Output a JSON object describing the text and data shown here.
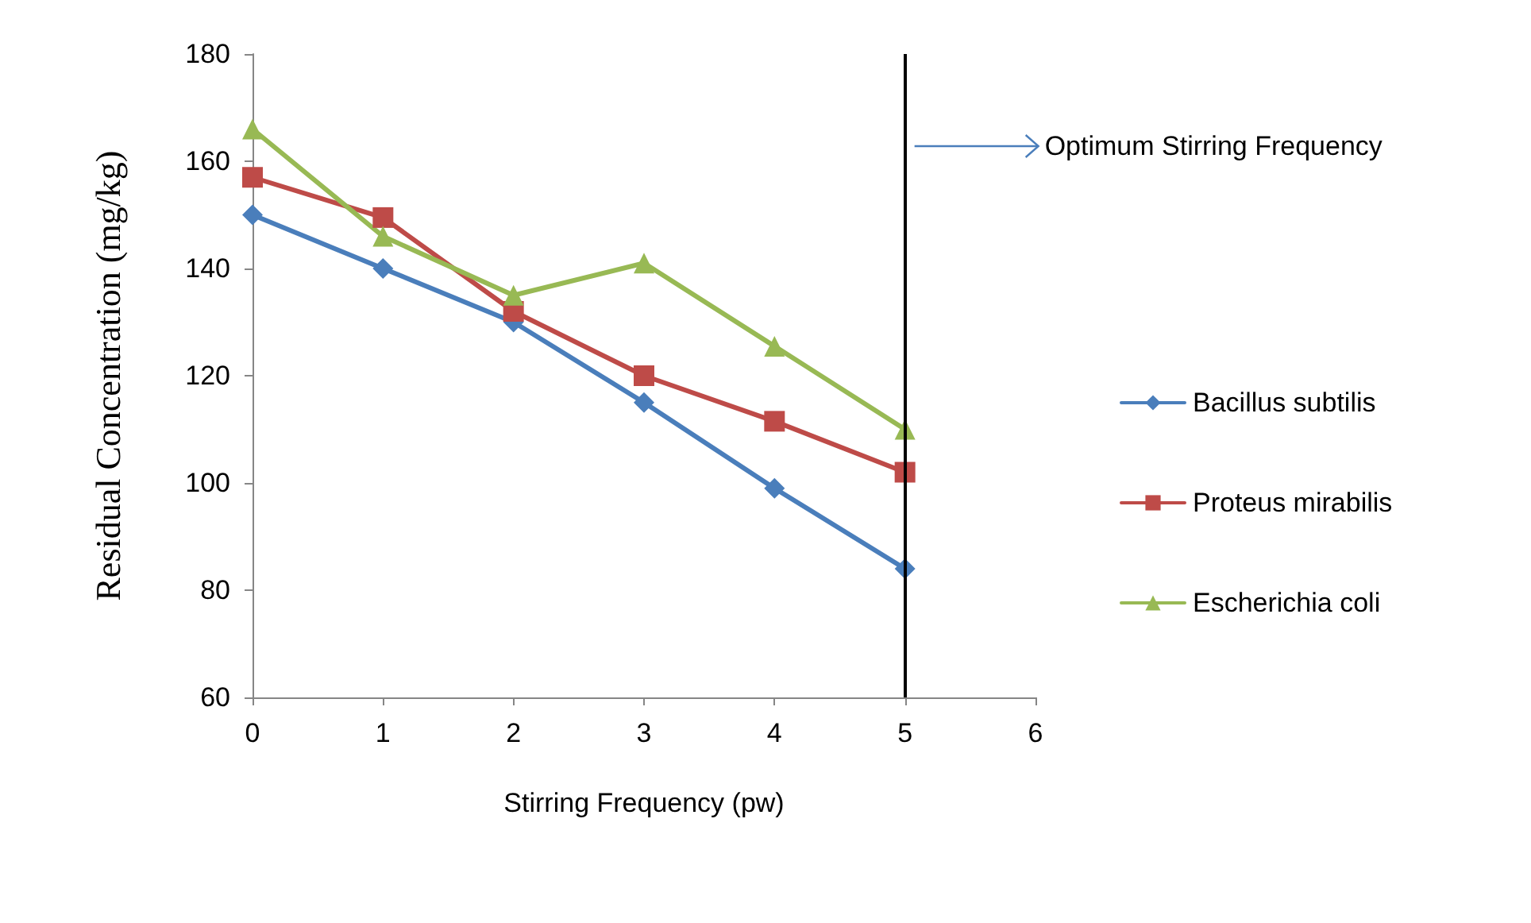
{
  "chart_data": {
    "type": "line",
    "xlabel": "Stirring Frequency (pw)",
    "ylabel": "Residual Concentration (mg/kg)",
    "x": [
      0,
      1,
      2,
      3,
      4,
      5
    ],
    "xlim": [
      0,
      6
    ],
    "xticks": [
      0,
      1,
      2,
      3,
      4,
      5,
      6
    ],
    "ylim": [
      60,
      180
    ],
    "yticks": [
      60,
      80,
      100,
      120,
      140,
      160,
      180
    ],
    "series": [
      {
        "name": "Bacillus subtilis",
        "color": "#4a7ebb",
        "marker": "diamond",
        "values": [
          150,
          140,
          130,
          115,
          99,
          84
        ]
      },
      {
        "name": "Proteus mirabilis",
        "color": "#be4b48",
        "marker": "square",
        "values": [
          157,
          149.5,
          132,
          120,
          111.5,
          102
        ]
      },
      {
        "name": "Escherichia coli",
        "color": "#98b954",
        "marker": "triangle",
        "values": [
          166,
          146,
          135,
          141,
          125.5,
          110
        ]
      }
    ],
    "ref_lines": [
      {
        "axis": "x",
        "value": 5,
        "label": "Optimum Stirring Frequency",
        "color": "#000000"
      }
    ],
    "legend": "right",
    "grid": false,
    "line_style": "solid"
  }
}
